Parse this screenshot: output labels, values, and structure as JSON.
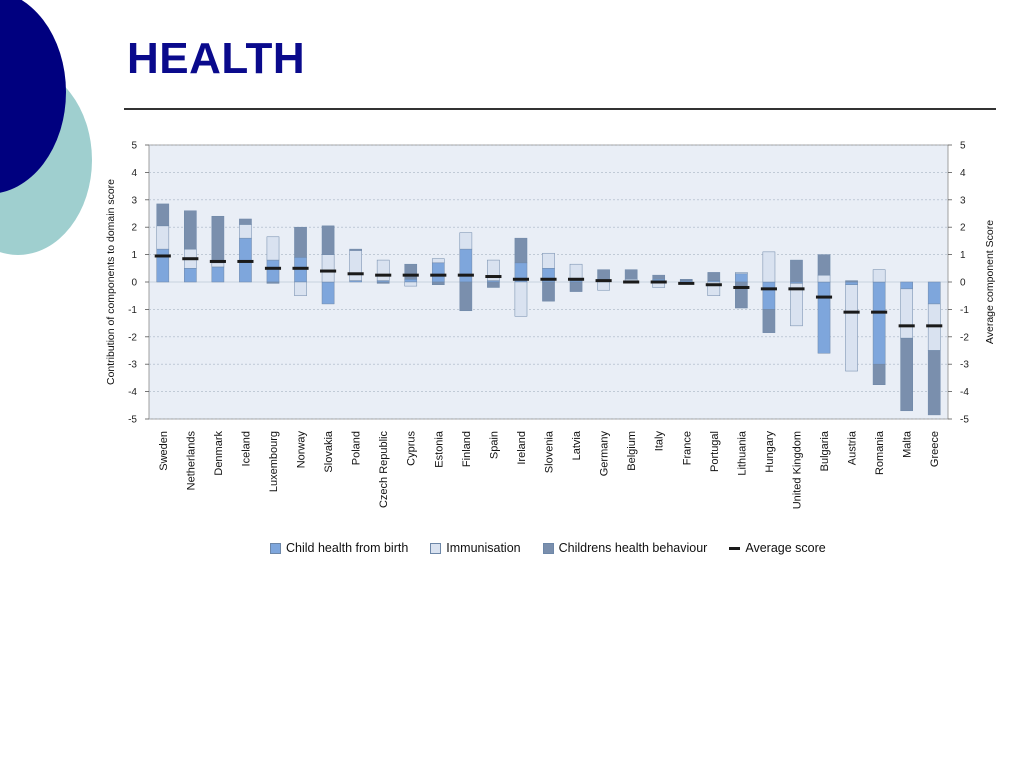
{
  "page": {
    "title": "HEALTH"
  },
  "colors": {
    "title": "#0a0a8c",
    "deco_dark": "#00007f",
    "deco_light": "#9fcfcf",
    "child_health": "#7ea6dc",
    "immunisation": "#d9e2f0",
    "behaviour": "#7a8fad",
    "average": "#1a1a1a",
    "plot_bg": "#e9eef6"
  },
  "chart_data": {
    "type": "bar",
    "title": "",
    "ylabel": "Contribution of components to domain score",
    "y2label": "Average component Score",
    "ylim": [
      -5,
      5
    ],
    "y2lim": [
      -5,
      5
    ],
    "yticks": [
      "5",
      "4",
      "3",
      "2",
      "1",
      "0",
      "-1",
      "-2",
      "-3",
      "-4",
      "-5"
    ],
    "grid": true,
    "legend_position": "bottom",
    "categories": [
      "Sweden",
      "Netherlands",
      "Denmark",
      "Iceland",
      "Luxembourg",
      "Norway",
      "Slovakia",
      "Poland",
      "Czech Republic",
      "Cyprus",
      "Estonia",
      "Finland",
      "Spain",
      "Ireland",
      "Slovenia",
      "Latvia",
      "Germany",
      "Belgium",
      "Italy",
      "France",
      "Portugal",
      "Lithuania",
      "Hungary",
      "United Kingdom",
      "Bulgaria",
      "Austria",
      "Romania",
      "Malta",
      "Greece"
    ],
    "series": [
      {
        "name": "Child health from birth",
        "type": "stacked-bar",
        "values": [
          1.2,
          0.5,
          0.55,
          1.6,
          0.8,
          0.9,
          -0.8,
          0.05,
          0.05,
          0.1,
          0.7,
          1.2,
          0.05,
          0.7,
          0.5,
          0.05,
          0.05,
          0.05,
          0.1,
          0.05,
          0.05,
          0.3,
          -1.0,
          -0.05,
          -2.6,
          -0.1,
          -3.0,
          -0.25,
          -0.8
        ]
      },
      {
        "name": "Immunisation",
        "type": "stacked-bar",
        "values": [
          0.85,
          0.7,
          0.15,
          0.5,
          0.85,
          -0.5,
          1.0,
          1.1,
          0.75,
          -0.15,
          0.15,
          0.6,
          0.75,
          -1.25,
          0.55,
          0.6,
          -0.3,
          0.05,
          -0.2,
          -0.05,
          -0.5,
          0.05,
          1.1,
          -1.55,
          0.25,
          -3.15,
          0.45,
          -1.8,
          -1.7
        ]
      },
      {
        "name": "Childrens health behaviour",
        "type": "stacked-bar",
        "values": [
          0.8,
          1.4,
          1.7,
          0.2,
          -0.05,
          1.1,
          1.05,
          0.05,
          -0.05,
          0.55,
          -0.1,
          -1.05,
          -0.2,
          0.9,
          -0.7,
          -0.35,
          0.4,
          0.35,
          0.15,
          0.05,
          0.3,
          -0.95,
          -0.85,
          0.8,
          0.75,
          0.05,
          -0.75,
          -2.65,
          -2.35
        ]
      },
      {
        "name": "Average score",
        "type": "marker",
        "values": [
          0.95,
          0.85,
          0.75,
          0.75,
          0.5,
          0.5,
          0.4,
          0.3,
          0.25,
          0.25,
          0.25,
          0.25,
          0.2,
          0.1,
          0.1,
          0.1,
          0.05,
          0.0,
          0.0,
          -0.05,
          -0.1,
          -0.2,
          -0.25,
          -0.25,
          -0.55,
          -1.1,
          -1.1,
          -1.6,
          -1.6
        ]
      }
    ]
  }
}
